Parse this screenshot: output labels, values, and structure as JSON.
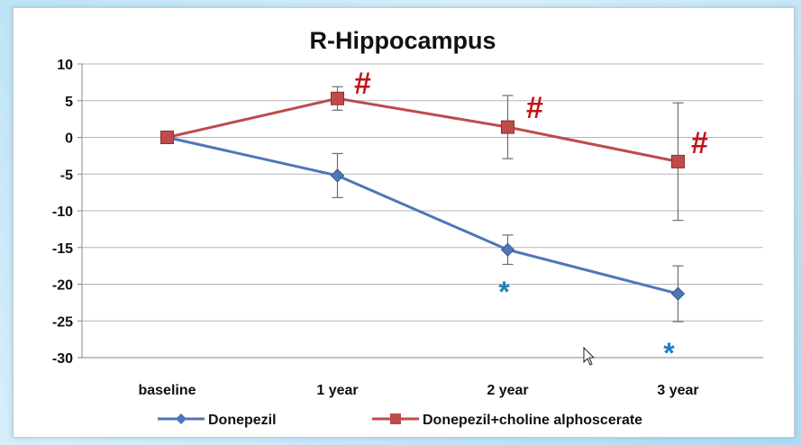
{
  "chart_data": {
    "type": "line",
    "title": "R-Hippocampus",
    "categories": [
      "baseline",
      "1 year",
      "2 year",
      "3 year"
    ],
    "ylim": [
      -30,
      10
    ],
    "yticks": [
      10,
      5,
      0,
      -5,
      -10,
      -15,
      -20,
      -25,
      -30
    ],
    "grid": true,
    "legend_position": "bottom",
    "series": [
      {
        "name": "Donepezil",
        "color": "#4f76b8",
        "marker": "diamond",
        "values": [
          0,
          -5.2,
          -15.3,
          -21.3
        ],
        "error": [
          0,
          3.0,
          2.0,
          3.8
        ],
        "annotations": [
          "",
          "",
          "*",
          "*"
        ],
        "annotation_color": "#1f7fc0"
      },
      {
        "name": "Donepezil+choline alphoscerate",
        "color": "#bf4b4b",
        "marker": "square",
        "values": [
          0,
          5.3,
          1.4,
          -3.3
        ],
        "error": [
          0,
          1.6,
          4.3,
          8.0
        ],
        "annotations": [
          "",
          "#",
          "#",
          "#"
        ],
        "annotation_color": "#c0141b"
      }
    ]
  },
  "ui": {
    "cursor_icon": "mouse-pointer-icon"
  }
}
